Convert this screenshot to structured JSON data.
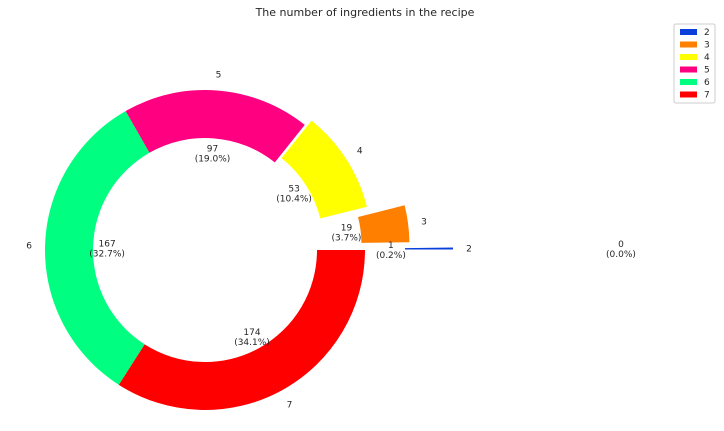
{
  "chart_data": {
    "type": "pie",
    "style": "donut",
    "title": "The number of ingredients in the recipe",
    "legend_position": "top-right",
    "slices": [
      {
        "label": "2",
        "value": 1,
        "value_text": "1",
        "pct_text": "(0.2%)",
        "color": "#0a3fdc",
        "explode": 0.55
      },
      {
        "label": "3",
        "value": 19,
        "value_text": "19",
        "pct_text": "(3.7%)",
        "color": "#ff8000",
        "explode": 0.28
      },
      {
        "label": "4",
        "value": 53,
        "value_text": "53",
        "pct_text": "(10.4%)",
        "color": "#ffff00",
        "explode": 0.05
      },
      {
        "label": "5",
        "value": 97,
        "value_text": "97",
        "pct_text": "(19.0%)",
        "color": "#ff0080",
        "explode": 0
      },
      {
        "label": "6",
        "value": 167,
        "value_text": "167",
        "pct_text": "(32.7%)",
        "color": "#00ff80",
        "explode": 0
      },
      {
        "label": "7",
        "value": 174,
        "value_text": "174",
        "pct_text": "(34.1%)",
        "color": "#ff0000",
        "explode": 0
      }
    ],
    "extra_labels": [
      {
        "value_text": "0",
        "pct_text": "(0.0%)"
      }
    ]
  }
}
